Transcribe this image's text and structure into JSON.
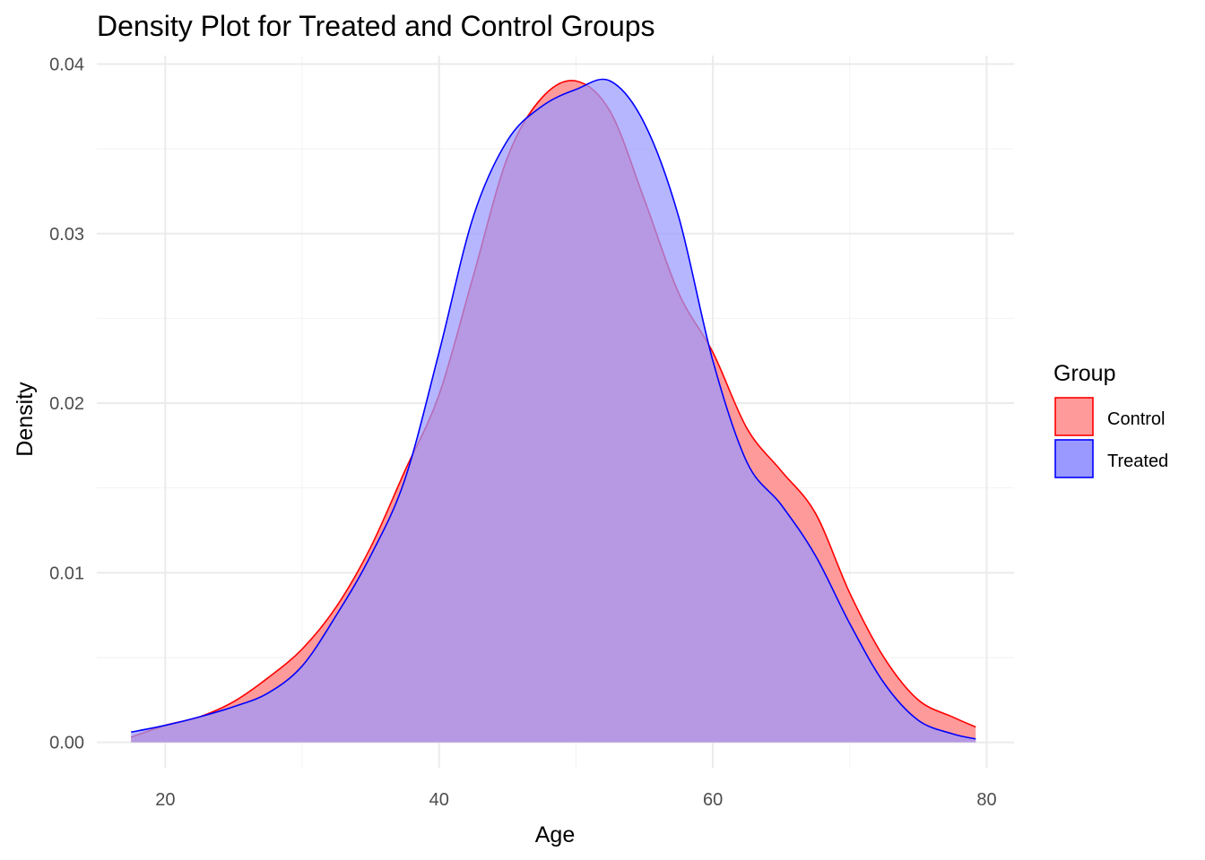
{
  "chart_data": {
    "type": "area",
    "title": "Density Plot for Treated and Control Groups",
    "xlabel": "Age",
    "ylabel": "Density",
    "xlim": [
      15,
      82
    ],
    "ylim": [
      -0.0015,
      0.0405
    ],
    "x_ticks": [
      20,
      40,
      60,
      80
    ],
    "y_ticks": [
      0.0,
      0.01,
      0.02,
      0.03,
      0.04
    ],
    "y_tick_labels": [
      "0.00",
      "0.01",
      "0.02",
      "0.03",
      "0.04"
    ],
    "grid": true,
    "legend": {
      "title": "Group",
      "position": "right"
    },
    "series": [
      {
        "name": "Control",
        "fill": "#ff9a9a",
        "stroke": "#ff0000",
        "points": [
          [
            17.5,
            0.0003
          ],
          [
            20,
            0.001
          ],
          [
            22.5,
            0.0015
          ],
          [
            25,
            0.0024
          ],
          [
            27.5,
            0.0038
          ],
          [
            30,
            0.0055
          ],
          [
            32.5,
            0.008
          ],
          [
            35,
            0.0115
          ],
          [
            37.5,
            0.016
          ],
          [
            40,
            0.0205
          ],
          [
            42.5,
            0.0275
          ],
          [
            45,
            0.0345
          ],
          [
            47.5,
            0.038
          ],
          [
            50,
            0.039
          ],
          [
            52.5,
            0.0372
          ],
          [
            55,
            0.032
          ],
          [
            57.5,
            0.0265
          ],
          [
            60,
            0.023
          ],
          [
            62.5,
            0.0185
          ],
          [
            65,
            0.016
          ],
          [
            67.5,
            0.0135
          ],
          [
            70,
            0.0088
          ],
          [
            72.5,
            0.005
          ],
          [
            75,
            0.0025
          ],
          [
            77.5,
            0.0015
          ],
          [
            79.2,
            0.0009
          ]
        ]
      },
      {
        "name": "Treated",
        "fill": "#9999ff",
        "stroke": "#0000ff",
        "points": [
          [
            17.5,
            0.0006
          ],
          [
            20,
            0.001
          ],
          [
            22.5,
            0.0015
          ],
          [
            25,
            0.0021
          ],
          [
            27.5,
            0.0029
          ],
          [
            30,
            0.0045
          ],
          [
            32.5,
            0.0075
          ],
          [
            35,
            0.011
          ],
          [
            37.5,
            0.0155
          ],
          [
            40,
            0.023
          ],
          [
            42.5,
            0.031
          ],
          [
            45,
            0.0355
          ],
          [
            47.5,
            0.0375
          ],
          [
            50,
            0.0385
          ],
          [
            52.5,
            0.039
          ],
          [
            55,
            0.0365
          ],
          [
            57.5,
            0.031
          ],
          [
            60,
            0.0225
          ],
          [
            62.5,
            0.0165
          ],
          [
            65,
            0.014
          ],
          [
            67.5,
            0.011
          ],
          [
            70,
            0.007
          ],
          [
            72.5,
            0.0035
          ],
          [
            75,
            0.0013
          ],
          [
            77.5,
            0.0005
          ],
          [
            79.2,
            0.0002
          ]
        ]
      }
    ]
  }
}
